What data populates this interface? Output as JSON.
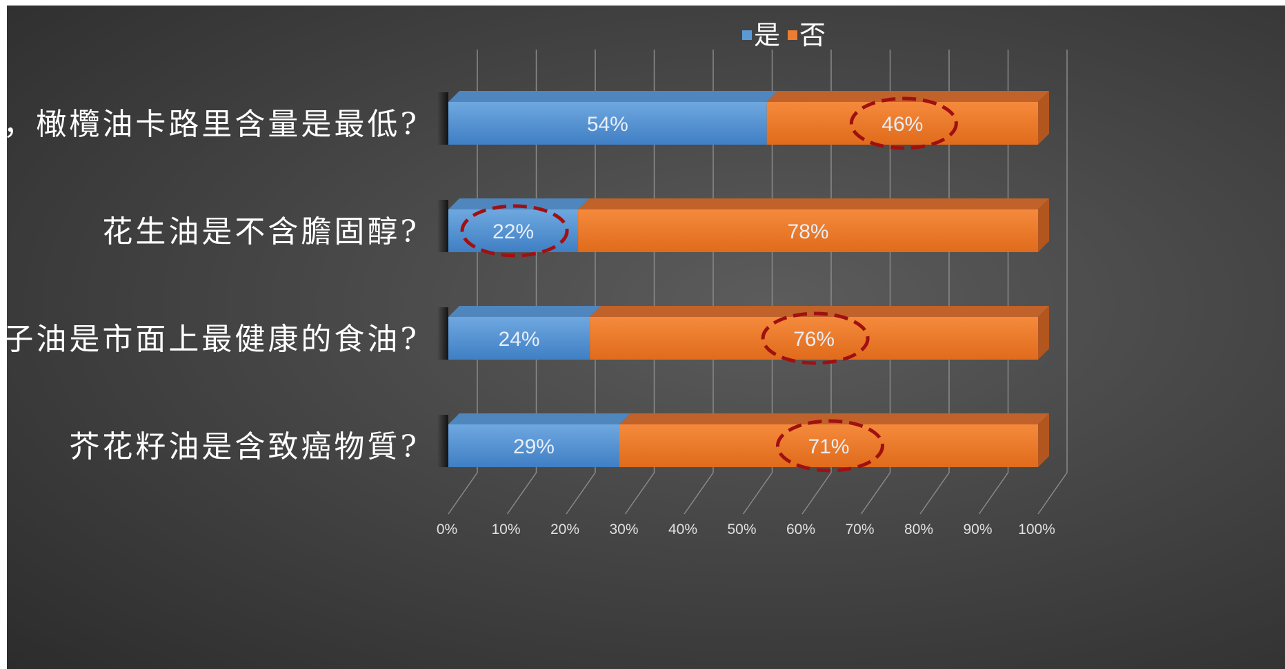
{
  "chart_data": {
    "type": "bar",
    "orientation": "horizontal",
    "stacked": "100%",
    "categories": [
      "在食油中，橄欖油卡路里含量是最低?",
      "花生油是不含膽固醇?",
      "椰子油是市面上最健康的食油?",
      "芥花籽油是含致癌物質?"
    ],
    "series": [
      {
        "name": "是",
        "color": "#5b9bd5",
        "values": [
          54,
          22,
          24,
          29
        ],
        "labels": [
          "54%",
          "22%",
          "24%",
          "29%"
        ]
      },
      {
        "name": "否",
        "color": "#ed7d31",
        "values": [
          46,
          78,
          76,
          71
        ],
        "labels": [
          "46%",
          "78%",
          "76%",
          "71%"
        ]
      }
    ],
    "x_ticks": [
      "0%",
      "10%",
      "20%",
      "30%",
      "40%",
      "50%",
      "60%",
      "70%",
      "80%",
      "90%",
      "100%"
    ],
    "xlim": [
      0,
      100
    ],
    "grid": true,
    "legend_position": "top",
    "highlighted": [
      {
        "category_index": 0,
        "series_index": 1
      },
      {
        "category_index": 1,
        "series_index": 0
      },
      {
        "category_index": 2,
        "series_index": 1
      },
      {
        "category_index": 3,
        "series_index": 1
      }
    ],
    "highlight_color": "#a01010",
    "background_color": "#454545"
  }
}
